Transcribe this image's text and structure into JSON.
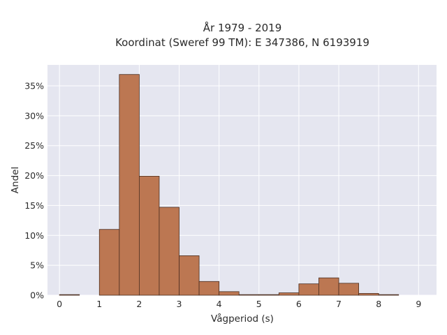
{
  "chart_data": {
    "type": "bar",
    "title": "År 1979 - 2019",
    "subtitle": "Koordinat (Sweref 99 TM): E 347386, N 6193919",
    "xlabel": "Vågperiod (s)",
    "ylabel": "Andel",
    "xlim": [
      -0.3,
      9.45
    ],
    "ylim": [
      0,
      0.385
    ],
    "x_ticks": [
      0,
      1,
      2,
      3,
      4,
      5,
      6,
      7,
      8,
      9
    ],
    "x_tick_labels": [
      "0",
      "1",
      "2",
      "3",
      "4",
      "5",
      "6",
      "7",
      "8",
      "9"
    ],
    "y_ticks": [
      0,
      0.05,
      0.1,
      0.15,
      0.2,
      0.25,
      0.3,
      0.35
    ],
    "y_tick_labels": [
      "0%",
      "5%",
      "10%",
      "15%",
      "20%",
      "25%",
      "30%",
      "35%"
    ],
    "grid": true,
    "bin_width": 0.5,
    "bins": [
      {
        "x0": 0.0,
        "value": 0.001
      },
      {
        "x0": 0.5,
        "value": 0.0
      },
      {
        "x0": 1.0,
        "value": 0.11
      },
      {
        "x0": 1.5,
        "value": 0.369
      },
      {
        "x0": 2.0,
        "value": 0.199
      },
      {
        "x0": 2.5,
        "value": 0.147
      },
      {
        "x0": 3.0,
        "value": 0.066
      },
      {
        "x0": 3.5,
        "value": 0.023
      },
      {
        "x0": 4.0,
        "value": 0.006
      },
      {
        "x0": 4.5,
        "value": 0.001
      },
      {
        "x0": 5.0,
        "value": 0.001
      },
      {
        "x0": 5.5,
        "value": 0.004
      },
      {
        "x0": 6.0,
        "value": 0.019
      },
      {
        "x0": 6.5,
        "value": 0.029
      },
      {
        "x0": 7.0,
        "value": 0.02
      },
      {
        "x0": 7.5,
        "value": 0.003
      },
      {
        "x0": 8.0,
        "value": 0.001
      }
    ],
    "colors": {
      "bar_fill": "#bc7752",
      "bar_edge": "#4a2e20",
      "plot_background": "#e5e6f0",
      "grid": "#ffffff"
    }
  }
}
